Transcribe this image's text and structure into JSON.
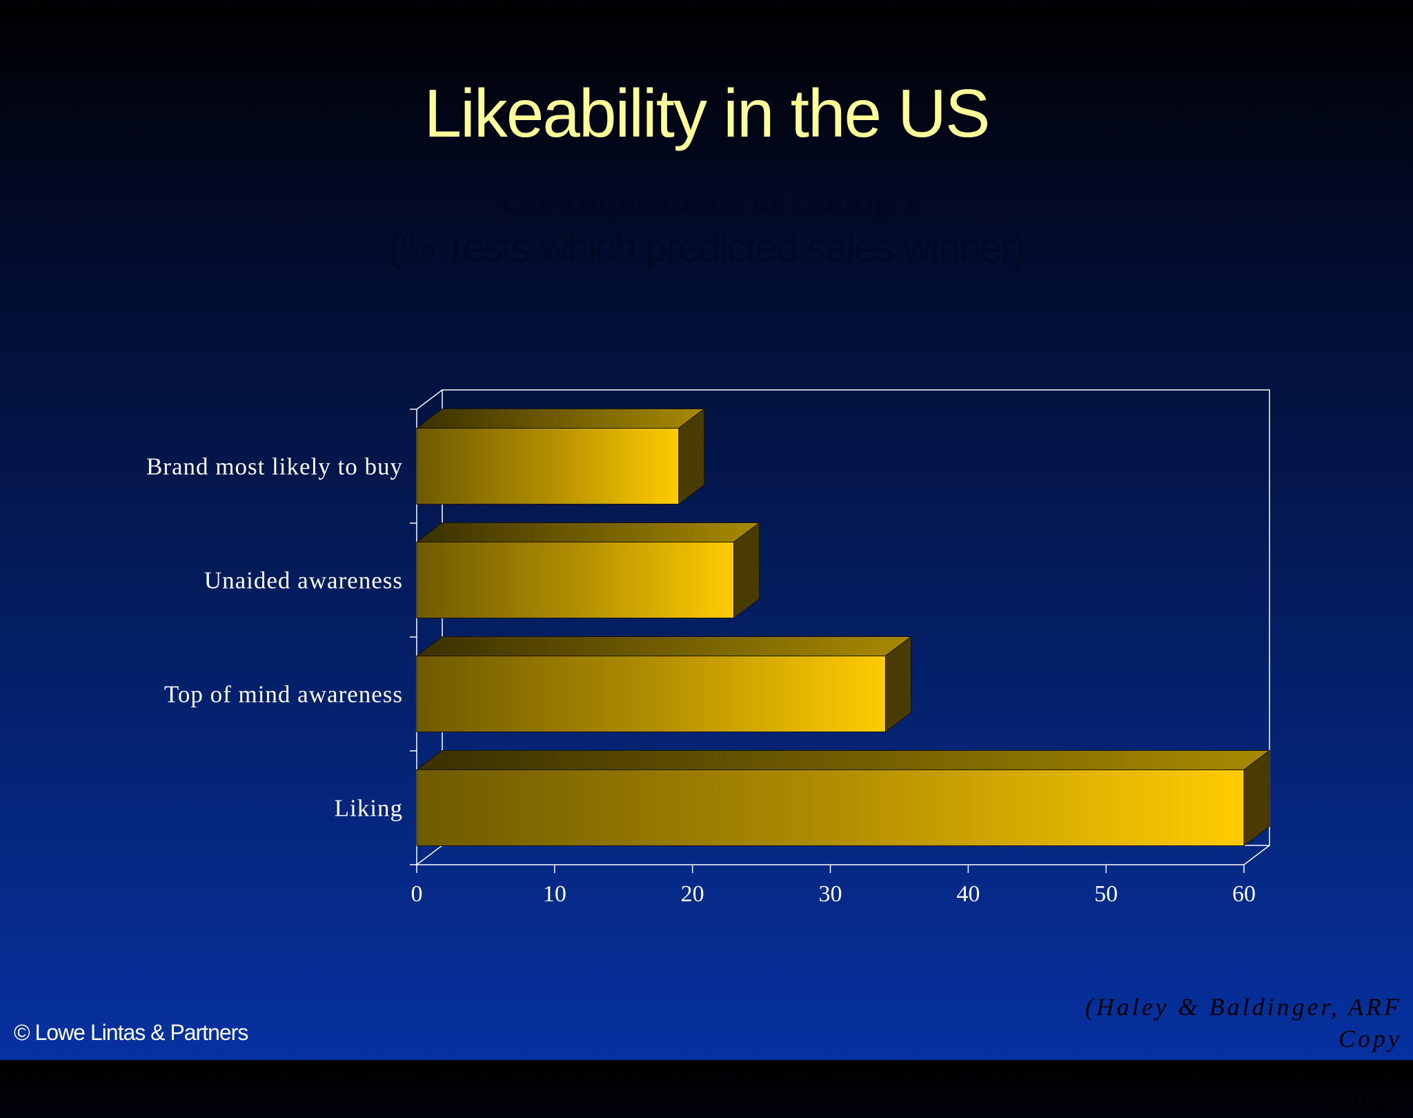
{
  "slide": {
    "title": "Likeability in the US",
    "subtitle_line1": "The Importance of Liking 1",
    "subtitle_line2": "(% Tests which predicted sales winner)",
    "copyright": "© Lowe Lintas & Partners",
    "source_line1": "(Haley & Baldinger, ARF Copy",
    "source_line2": "Research Validity Project 1991)"
  },
  "chart_data": {
    "type": "bar",
    "orientation": "horizontal",
    "categories": [
      "Brand most likely to buy",
      "Unaided awareness",
      "Top of mind awareness",
      "Liking"
    ],
    "values": [
      19,
      23,
      34,
      60
    ],
    "xlim": [
      0,
      60
    ],
    "xticks": [
      0,
      10,
      20,
      30,
      40,
      50,
      60
    ],
    "title": "The Importance of Liking 1",
    "subtitle": "(% Tests which predicted sales winner)",
    "xlabel": "",
    "ylabel": "",
    "colors": {
      "bar_light": "#ffcc00",
      "bar_dark": "#6e5a00",
      "axis": "#ffffff"
    }
  }
}
